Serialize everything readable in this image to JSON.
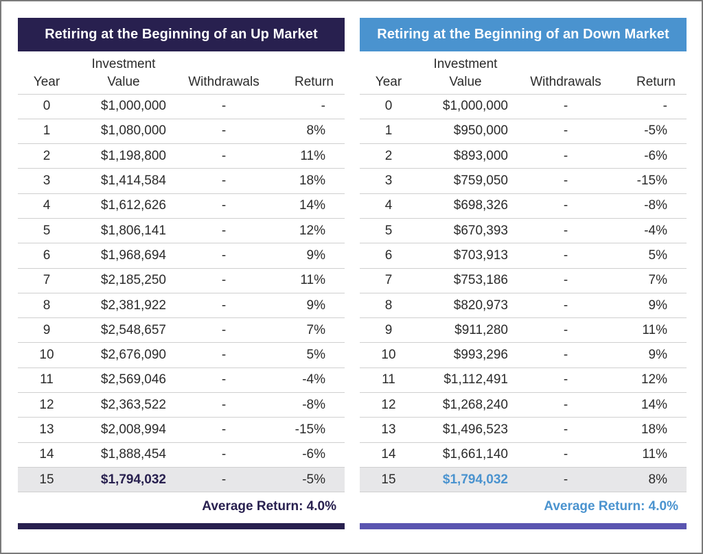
{
  "colors": {
    "up_accent": "#28204f",
    "down_accent": "#4a93cf",
    "down_bar": "#5a55b0"
  },
  "chart_data": [
    {
      "type": "table",
      "title": "Retiring at the Beginning of an Up Market",
      "columns": [
        "Year",
        "Investment Value",
        "Withdrawals",
        "Return"
      ],
      "rows": [
        {
          "year": "0",
          "value": "$1,000,000",
          "withdrawals": "-",
          "return": "-"
        },
        {
          "year": "1",
          "value": "$1,080,000",
          "withdrawals": "-",
          "return": "8%"
        },
        {
          "year": "2",
          "value": "$1,198,800",
          "withdrawals": "-",
          "return": "11%"
        },
        {
          "year": "3",
          "value": "$1,414,584",
          "withdrawals": "-",
          "return": "18%"
        },
        {
          "year": "4",
          "value": "$1,612,626",
          "withdrawals": "-",
          "return": "14%"
        },
        {
          "year": "5",
          "value": "$1,806,141",
          "withdrawals": "-",
          "return": "12%"
        },
        {
          "year": "6",
          "value": "$1,968,694",
          "withdrawals": "-",
          "return": "9%"
        },
        {
          "year": "7",
          "value": "$2,185,250",
          "withdrawals": "-",
          "return": "11%"
        },
        {
          "year": "8",
          "value": "$2,381,922",
          "withdrawals": "-",
          "return": "9%"
        },
        {
          "year": "9",
          "value": "$2,548,657",
          "withdrawals": "-",
          "return": "7%"
        },
        {
          "year": "10",
          "value": "$2,676,090",
          "withdrawals": "-",
          "return": "5%"
        },
        {
          "year": "11",
          "value": "$2,569,046",
          "withdrawals": "-",
          "return": "-4%"
        },
        {
          "year": "12",
          "value": "$2,363,522",
          "withdrawals": "-",
          "return": "-8%"
        },
        {
          "year": "13",
          "value": "$2,008,994",
          "withdrawals": "-",
          "return": "-15%"
        },
        {
          "year": "14",
          "value": "$1,888,454",
          "withdrawals": "-",
          "return": "-6%"
        },
        {
          "year": "15",
          "value": "$1,794,032",
          "withdrawals": "-",
          "return": "-5%"
        }
      ],
      "average_return": "Average Return: 4.0%"
    },
    {
      "type": "table",
      "title": "Retiring at the Beginning of an Down Market",
      "columns": [
        "Year",
        "Investment Value",
        "Withdrawals",
        "Return"
      ],
      "rows": [
        {
          "year": "0",
          "value": "$1,000,000",
          "withdrawals": "-",
          "return": "-"
        },
        {
          "year": "1",
          "value": "$950,000",
          "withdrawals": "-",
          "return": "-5%"
        },
        {
          "year": "2",
          "value": "$893,000",
          "withdrawals": "-",
          "return": "-6%"
        },
        {
          "year": "3",
          "value": "$759,050",
          "withdrawals": "-",
          "return": "-15%"
        },
        {
          "year": "4",
          "value": "$698,326",
          "withdrawals": "-",
          "return": "-8%"
        },
        {
          "year": "5",
          "value": "$670,393",
          "withdrawals": "-",
          "return": "-4%"
        },
        {
          "year": "6",
          "value": "$703,913",
          "withdrawals": "-",
          "return": "5%"
        },
        {
          "year": "7",
          "value": "$753,186",
          "withdrawals": "-",
          "return": "7%"
        },
        {
          "year": "8",
          "value": "$820,973",
          "withdrawals": "-",
          "return": "9%"
        },
        {
          "year": "9",
          "value": "$911,280",
          "withdrawals": "-",
          "return": "11%"
        },
        {
          "year": "10",
          "value": "$993,296",
          "withdrawals": "-",
          "return": "9%"
        },
        {
          "year": "11",
          "value": "$1,112,491",
          "withdrawals": "-",
          "return": "12%"
        },
        {
          "year": "12",
          "value": "$1,268,240",
          "withdrawals": "-",
          "return": "14%"
        },
        {
          "year": "13",
          "value": "$1,496,523",
          "withdrawals": "-",
          "return": "18%"
        },
        {
          "year": "14",
          "value": "$1,661,140",
          "withdrawals": "-",
          "return": "11%"
        },
        {
          "year": "15",
          "value": "$1,794,032",
          "withdrawals": "-",
          "return": "8%"
        }
      ],
      "average_return": "Average Return: 4.0%"
    }
  ]
}
